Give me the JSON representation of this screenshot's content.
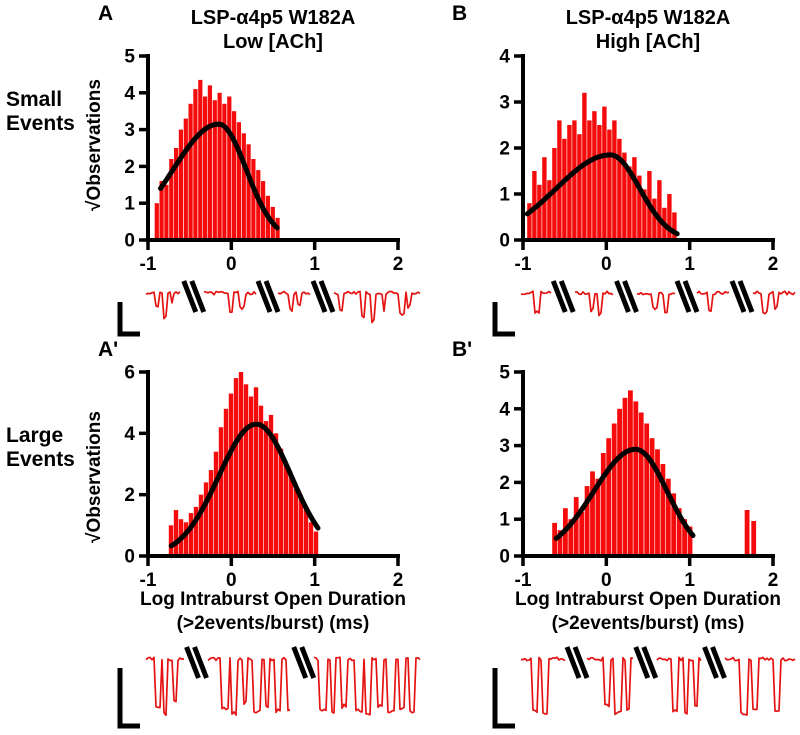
{
  "colors": {
    "bar": "#f40b0b",
    "trace": "#e51212",
    "curve": "#000000",
    "axis": "#000000"
  },
  "row_labels": [
    {
      "line1": "Small",
      "line2": "Events"
    },
    {
      "line1": "Large",
      "line2": "Events"
    }
  ],
  "panels": [
    {
      "letter": "A",
      "title_line1": "LSP-α4p5 W182A",
      "title_line2": "Low [ACh]",
      "ylabel": "√Observations"
    },
    {
      "letter": "B",
      "title_line1": "LSP-α4p5 W182A",
      "title_line2": "High [ACh]",
      "ylabel": ""
    },
    {
      "letter": "A'",
      "ylabel": "√Observations",
      "xlabel_line1": "Log Intraburst Open Duration",
      "xlabel_line2": "(>2events/burst) (ms)"
    },
    {
      "letter": "B'",
      "xlabel_line1": "Log Intraburst Open Duration",
      "xlabel_line2": "(>2events/burst) (ms)"
    }
  ],
  "chart_data": [
    {
      "id": "A",
      "type": "bar",
      "title": "LSP-α4p5 W182A Low [ACh] — Small Events",
      "xlabel": "Log Intraburst Open Duration (>2events/burst) (ms)",
      "ylabel": "√Observations",
      "xlim": [
        -1,
        2
      ],
      "ylim": [
        0,
        5
      ],
      "xticks": [
        -1,
        0,
        1,
        2
      ],
      "yticks": [
        0,
        1,
        2,
        3,
        4,
        5
      ],
      "bin_start": -0.92,
      "bin_width": 0.058,
      "values": [
        1.0,
        1.6,
        1.5,
        2.2,
        2.5,
        3.0,
        3.3,
        3.7,
        4.1,
        4.35,
        3.9,
        4.2,
        3.8,
        4.0,
        3.7,
        3.9,
        3.5,
        3.2,
        2.9,
        2.6,
        2.2,
        1.9,
        1.6,
        1.2,
        0.9,
        0.6
      ],
      "fit": {
        "peak": 3.15,
        "mean": -0.15,
        "sd_left": 0.55,
        "sd_right": 0.33,
        "x_start": -0.85,
        "x_end": 0.56
      }
    },
    {
      "id": "B",
      "type": "bar",
      "title": "LSP-α4p5 W182A High [ACh] — Small Events",
      "xlabel": "Log Intraburst Open Duration (>2events/burst) (ms)",
      "ylabel": "√Observations",
      "xlim": [
        -1,
        2
      ],
      "ylim": [
        0,
        4
      ],
      "xticks": [
        -1,
        0,
        1,
        2
      ],
      "yticks": [
        0,
        1,
        2,
        3,
        4
      ],
      "bin_start": -0.95,
      "bin_width": 0.06,
      "values": [
        0.8,
        1.5,
        1.2,
        1.8,
        1.3,
        2.0,
        2.6,
        2.2,
        2.5,
        2.6,
        2.3,
        3.2,
        2.6,
        2.8,
        2.5,
        2.9,
        2.4,
        2.6,
        2.2,
        1.9,
        1.6,
        1.8,
        1.4,
        1.1,
        1.5,
        0.9,
        1.3,
        0.7,
        1.0,
        0.6
      ],
      "fit": {
        "peak": 1.85,
        "mean": 0.05,
        "sd_left": 0.65,
        "sd_right": 0.35,
        "x_start": -0.95,
        "x_end": 0.85
      }
    },
    {
      "id": "Ap",
      "type": "bar",
      "title": "LSP-α4p5 W182A Low [ACh] — Large Events",
      "xlabel": "Log Intraburst Open Duration (>2events/burst) (ms)",
      "ylabel": "√Observations",
      "xlim": [
        -1,
        2
      ],
      "ylim": [
        0,
        6
      ],
      "xticks": [
        -1,
        0,
        1,
        2
      ],
      "yticks": [
        0,
        2,
        4,
        6
      ],
      "bin_start": -0.75,
      "bin_width": 0.06,
      "values": [
        1.0,
        1.5,
        1.2,
        1.1,
        1.4,
        1.6,
        2.0,
        2.4,
        2.8,
        3.4,
        4.2,
        4.8,
        5.3,
        5.8,
        6.0,
        5.6,
        5.2,
        5.5,
        4.9,
        4.4,
        4.6,
        4.0,
        3.5,
        3.0,
        2.6,
        2.2,
        1.9,
        1.5,
        1.1,
        0.8
      ],
      "fit": {
        "peak": 4.3,
        "mean": 0.3,
        "sd_left": 0.45,
        "sd_right": 0.42,
        "x_start": -0.72,
        "x_end": 1.05
      }
    },
    {
      "id": "Bp",
      "type": "bar",
      "title": "LSP-α4p5 W182A High [ACh] — Large Events",
      "xlabel": "Log Intraburst Open Duration (>2events/burst) (ms)",
      "ylabel": "√Observations",
      "xlim": [
        -1,
        2
      ],
      "ylim": [
        0,
        5
      ],
      "xticks": [
        -1,
        0,
        1,
        2
      ],
      "yticks": [
        0,
        1,
        2,
        3,
        4,
        5
      ],
      "bin_start": -0.65,
      "bin_width": 0.065,
      "values": [
        0.9,
        0.7,
        1.3,
        1.0,
        1.6,
        1.2,
        1.9,
        2.3,
        2.1,
        2.8,
        3.2,
        3.6,
        4.0,
        4.3,
        4.5,
        4.2,
        3.9,
        3.6,
        3.2,
        2.9,
        2.5,
        2.1,
        1.7,
        1.3,
        1.0,
        0.8
      ],
      "extra_bars": [
        {
          "x": 1.66,
          "h": 1.25
        },
        {
          "x": 1.74,
          "h": 0.95
        }
      ],
      "fit": {
        "peak": 2.9,
        "mean": 0.35,
        "sd_left": 0.5,
        "sd_right": 0.38,
        "x_start": -0.6,
        "x_end": 1.05
      }
    }
  ],
  "traces": [
    {
      "id": "tA",
      "seed": 3,
      "breaks": [
        0.17,
        0.44,
        0.64
      ],
      "events": [
        [
          0.03,
          0.45,
          4
        ],
        [
          0.06,
          0.75,
          5
        ],
        [
          0.09,
          0.35,
          3
        ],
        [
          0.3,
          0.6,
          4
        ],
        [
          0.34,
          0.45,
          5
        ],
        [
          0.52,
          0.5,
          4
        ],
        [
          0.55,
          0.35,
          3
        ],
        [
          0.7,
          0.55,
          4
        ],
        [
          0.78,
          0.75,
          5
        ],
        [
          0.82,
          0.85,
          4
        ],
        [
          0.86,
          0.5,
          3
        ],
        [
          0.92,
          0.65,
          5
        ],
        [
          0.95,
          0.4,
          3
        ]
      ]
    },
    {
      "id": "tB",
      "seed": 7,
      "breaks": [
        0.15,
        0.38,
        0.6,
        0.8
      ],
      "events": [
        [
          0.05,
          0.6,
          5
        ],
        [
          0.25,
          0.5,
          4
        ],
        [
          0.28,
          0.65,
          4
        ],
        [
          0.48,
          0.45,
          4
        ],
        [
          0.52,
          0.55,
          3
        ],
        [
          0.68,
          0.5,
          4
        ],
        [
          0.88,
          0.6,
          5
        ],
        [
          0.92,
          0.45,
          3
        ]
      ]
    },
    {
      "id": "tAp",
      "seed": 11,
      "breaks": [
        0.18,
        0.57
      ],
      "events": [
        [
          0.03,
          0.8,
          6
        ],
        [
          0.06,
          0.92,
          5
        ],
        [
          0.1,
          0.7,
          4
        ],
        [
          0.27,
          0.85,
          8
        ],
        [
          0.31,
          0.92,
          6
        ],
        [
          0.35,
          0.75,
          5
        ],
        [
          0.39,
          0.9,
          7
        ],
        [
          0.43,
          0.8,
          5
        ],
        [
          0.47,
          0.88,
          6
        ],
        [
          0.51,
          0.85,
          5
        ],
        [
          0.63,
          0.85,
          7
        ],
        [
          0.67,
          0.92,
          5
        ],
        [
          0.71,
          0.8,
          5
        ],
        [
          0.76,
          0.88,
          8
        ],
        [
          0.8,
          0.92,
          5
        ],
        [
          0.84,
          0.8,
          6
        ],
        [
          0.88,
          0.9,
          6
        ],
        [
          0.92,
          0.85,
          5
        ],
        [
          0.96,
          0.9,
          5
        ]
      ]
    },
    {
      "id": "tBp",
      "seed": 19,
      "breaks": [
        0.2,
        0.45,
        0.7
      ],
      "events": [
        [
          0.04,
          0.88,
          6
        ],
        [
          0.08,
          0.92,
          5
        ],
        [
          0.3,
          0.8,
          6
        ],
        [
          0.34,
          0.92,
          7
        ],
        [
          0.38,
          0.85,
          5
        ],
        [
          0.55,
          0.88,
          6
        ],
        [
          0.59,
          0.92,
          5
        ],
        [
          0.63,
          0.8,
          4
        ],
        [
          0.8,
          0.92,
          6
        ],
        [
          0.84,
          0.85,
          5
        ],
        [
          0.92,
          0.9,
          6
        ]
      ]
    }
  ]
}
